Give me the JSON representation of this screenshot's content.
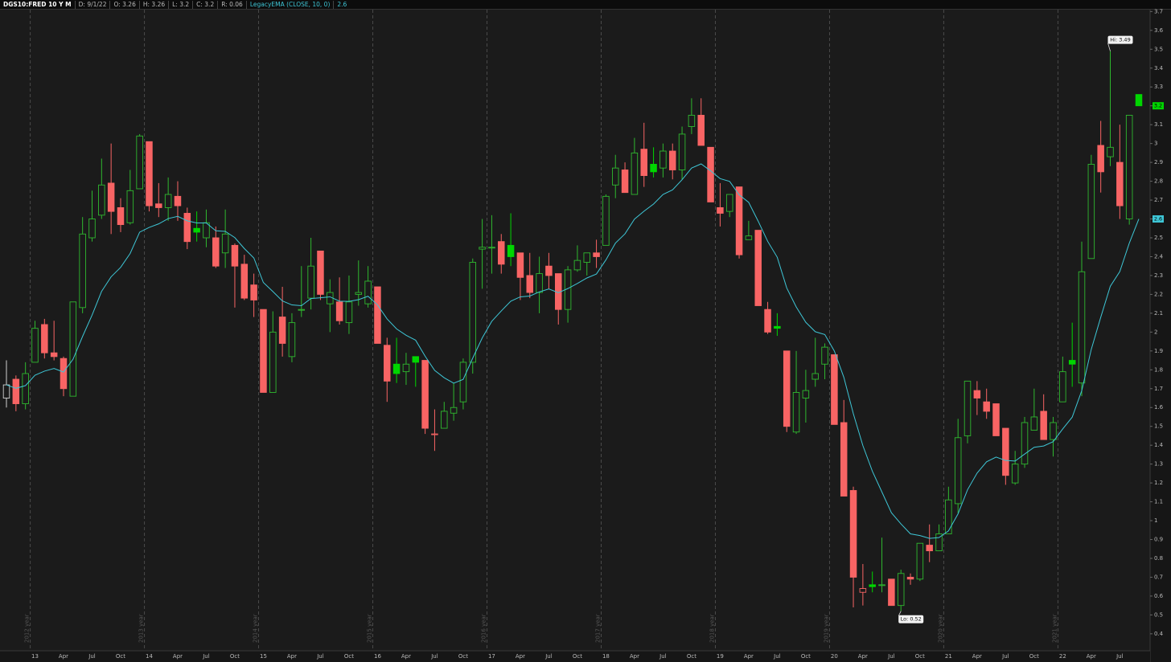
{
  "chart_data": {
    "type": "candlestick",
    "header": {
      "symbol": "DGS10:FRED 10 Y M",
      "fields": [
        "D: 9/1/22",
        "O: 3.26",
        "H: 3.26",
        "L: 3.2",
        "C: 3.2",
        "R: 0.06"
      ]
    },
    "categories": [
      null,
      null,
      null,
      "13",
      null,
      null,
      "Apr",
      null,
      null,
      "Jul",
      null,
      null,
      "Oct",
      null,
      null,
      "14",
      null,
      null,
      "Apr",
      null,
      null,
      "Jul",
      null,
      null,
      "Oct",
      null,
      null,
      "15",
      null,
      null,
      "Apr",
      null,
      null,
      "Jul",
      null,
      null,
      "Oct",
      null,
      null,
      "16",
      null,
      null,
      "Apr",
      null,
      null,
      "Jul",
      null,
      null,
      "Oct",
      null,
      null,
      "17",
      null,
      null,
      "Apr",
      null,
      null,
      "Jul",
      null,
      null,
      "Oct",
      null,
      null,
      "18",
      null,
      null,
      "Apr",
      null,
      null,
      "Jul",
      null,
      null,
      "Oct",
      null,
      null,
      "19",
      null,
      null,
      "Apr",
      null,
      null,
      "Jul",
      null,
      null,
      "Oct",
      null,
      null,
      "20",
      null,
      null,
      "Apr",
      null,
      null,
      "Jul",
      null,
      null,
      "Oct",
      null,
      null,
      "21",
      null,
      null,
      "Apr",
      null,
      null,
      "Jul",
      null,
      null,
      "Oct",
      null,
      null,
      "22",
      null,
      null,
      "Apr",
      null,
      null,
      "Jul",
      null,
      null
    ],
    "open": [
      1.65,
      1.75,
      1.62,
      1.84,
      2.04,
      1.89,
      1.86,
      1.66,
      2.13,
      2.5,
      2.62,
      2.79,
      2.66,
      2.58,
      2.76,
      3.01,
      2.68,
      2.66,
      2.72,
      2.63,
      2.55,
      2.5,
      2.5,
      2.42,
      2.46,
      2.36,
      2.25,
      2.12,
      1.68,
      2.08,
      1.87,
      2.12,
      2.18,
      2.43,
      2.15,
      2.16,
      2.05,
      2.2,
      2.15,
      2.24,
      1.93,
      1.83,
      1.79,
      1.87,
      1.85,
      1.46,
      1.49,
      1.57,
      1.63,
      1.84,
      2.44,
      2.45,
      2.48,
      2.46,
      2.42,
      2.3,
      2.21,
      2.35,
      2.31,
      2.12,
      2.33,
      2.37,
      2.42,
      2.46,
      2.78,
      2.86,
      2.73,
      2.97,
      2.89,
      2.87,
      2.96,
      2.86,
      3.09,
      3.15,
      2.98,
      2.66,
      2.64,
      2.77,
      2.49,
      2.54,
      2.12,
      2.03,
      1.9,
      1.47,
      1.65,
      1.75,
      1.83,
      1.88,
      1.52,
      1.16,
      0.62,
      0.66,
      0.66,
      0.69,
      0.55,
      0.7,
      0.69,
      0.87,
      0.84,
      0.93,
      1.09,
      1.45,
      1.69,
      1.63,
      1.62,
      1.49,
      1.2,
      1.3,
      1.48,
      1.58,
      1.43,
      1.63,
      1.85,
      1.73,
      2.39,
      2.99,
      2.93,
      2.9,
      2.6,
      3.26
    ],
    "high": [
      1.85,
      1.77,
      1.84,
      2.06,
      2.07,
      2.06,
      1.87,
      2.16,
      2.61,
      2.75,
      2.92,
      3.0,
      2.71,
      2.86,
      3.05,
      3.01,
      2.79,
      2.82,
      2.8,
      2.66,
      2.64,
      2.65,
      2.56,
      2.65,
      2.47,
      2.41,
      2.31,
      2.12,
      2.11,
      2.24,
      2.1,
      2.35,
      2.5,
      2.43,
      2.28,
      2.29,
      2.3,
      2.38,
      2.35,
      2.24,
      1.97,
      1.97,
      1.89,
      1.87,
      1.85,
      1.59,
      1.63,
      1.73,
      1.86,
      2.39,
      2.6,
      2.62,
      2.52,
      2.63,
      2.42,
      2.42,
      2.4,
      2.42,
      2.31,
      2.35,
      2.46,
      2.42,
      2.49,
      2.73,
      2.94,
      2.9,
      3.03,
      3.11,
      2.98,
      3.0,
      3.0,
      3.09,
      3.24,
      3.24,
      2.98,
      2.79,
      2.73,
      2.77,
      2.59,
      2.54,
      2.16,
      2.1,
      1.9,
      1.9,
      1.8,
      1.97,
      1.94,
      1.88,
      1.64,
      1.18,
      0.77,
      0.73,
      0.91,
      0.69,
      0.74,
      0.72,
      0.88,
      0.98,
      0.98,
      1.18,
      1.54,
      1.74,
      1.74,
      1.7,
      1.62,
      1.49,
      1.37,
      1.55,
      1.7,
      1.67,
      1.55,
      1.87,
      2.05,
      2.48,
      2.94,
      3.12,
      3.49,
      3.1,
      3.15,
      3.26
    ],
    "low": [
      1.6,
      1.58,
      1.59,
      1.84,
      1.86,
      1.85,
      1.66,
      1.66,
      2.1,
      2.48,
      2.6,
      2.52,
      2.53,
      2.57,
      2.76,
      2.64,
      2.61,
      2.59,
      2.59,
      2.44,
      2.48,
      2.45,
      2.34,
      2.34,
      2.13,
      2.17,
      2.08,
      1.68,
      1.68,
      1.87,
      1.84,
      2.08,
      2.12,
      2.17,
      2.0,
      2.04,
      1.99,
      2.14,
      2.13,
      1.94,
      1.63,
      1.73,
      1.72,
      1.71,
      1.46,
      1.37,
      1.49,
      1.53,
      1.59,
      1.78,
      2.23,
      2.31,
      2.31,
      2.35,
      2.17,
      2.18,
      2.1,
      2.23,
      2.04,
      2.05,
      2.32,
      2.3,
      2.34,
      2.46,
      2.71,
      2.74,
      2.73,
      2.77,
      2.82,
      2.82,
      2.81,
      2.81,
      3.05,
      2.99,
      2.69,
      2.56,
      2.61,
      2.39,
      2.49,
      2.14,
      1.99,
      1.98,
      1.47,
      1.46,
      1.52,
      1.71,
      1.75,
      1.51,
      1.13,
      0.54,
      0.55,
      0.62,
      0.62,
      0.55,
      0.52,
      0.66,
      0.68,
      0.78,
      0.84,
      0.93,
      1.04,
      1.41,
      1.56,
      1.54,
      1.45,
      1.19,
      1.19,
      1.28,
      1.48,
      1.43,
      1.34,
      1.63,
      1.71,
      1.66,
      2.39,
      2.74,
      2.88,
      2.6,
      2.57,
      3.2
    ],
    "close": [
      1.72,
      1.62,
      1.78,
      2.02,
      1.89,
      1.87,
      1.7,
      2.16,
      2.52,
      2.6,
      2.78,
      2.64,
      2.57,
      2.75,
      3.04,
      2.67,
      2.66,
      2.73,
      2.67,
      2.48,
      2.53,
      2.58,
      2.35,
      2.52,
      2.35,
      2.18,
      2.17,
      1.68,
      2.0,
      1.94,
      2.05,
      2.12,
      2.35,
      2.2,
      2.21,
      2.06,
      2.16,
      2.21,
      2.27,
      1.94,
      1.74,
      1.78,
      1.83,
      1.84,
      1.49,
      1.46,
      1.58,
      1.6,
      1.84,
      2.37,
      2.45,
      2.45,
      2.36,
      2.4,
      2.29,
      2.21,
      2.31,
      2.3,
      2.12,
      2.33,
      2.38,
      2.42,
      2.4,
      2.72,
      2.87,
      2.74,
      2.95,
      2.83,
      2.85,
      2.96,
      2.86,
      3.05,
      3.15,
      2.99,
      2.69,
      2.63,
      2.73,
      2.41,
      2.51,
      2.14,
      2.0,
      2.02,
      1.5,
      1.68,
      1.69,
      1.78,
      1.92,
      1.51,
      1.13,
      0.7,
      0.64,
      0.65,
      0.66,
      0.55,
      0.72,
      0.69,
      0.88,
      0.84,
      0.93,
      1.11,
      1.44,
      1.74,
      1.65,
      1.58,
      1.45,
      1.24,
      1.3,
      1.52,
      1.55,
      1.43,
      1.52,
      1.79,
      1.83,
      2.32,
      2.89,
      2.85,
      2.98,
      2.67,
      3.15,
      3.2
    ],
    "ema": {
      "name": "LegacyEMA (CLOSE, 10, 0)",
      "color": "#3ec6d6",
      "values": [
        1.72,
        1.702,
        1.716,
        1.771,
        1.793,
        1.807,
        1.788,
        1.856,
        1.977,
        2.09,
        2.216,
        2.293,
        2.343,
        2.417,
        2.53,
        2.555,
        2.574,
        2.602,
        2.614,
        2.59,
        2.579,
        2.579,
        2.537,
        2.534,
        2.501,
        2.443,
        2.393,
        2.263,
        2.215,
        2.165,
        2.144,
        2.14,
        2.178,
        2.182,
        2.187,
        2.164,
        2.163,
        2.172,
        2.19,
        2.144,
        2.07,
        2.017,
        1.983,
        1.957,
        1.872,
        1.797,
        1.758,
        1.729,
        1.749,
        1.862,
        1.969,
        2.057,
        2.112,
        2.164,
        2.187,
        2.191,
        2.213,
        2.229,
        2.209,
        2.231,
        2.258,
        2.287,
        2.308,
        2.383,
        2.472,
        2.521,
        2.599,
        2.641,
        2.679,
        2.73,
        2.754,
        2.808,
        2.87,
        2.892,
        2.855,
        2.814,
        2.799,
        2.728,
        2.688,
        2.588,
        2.481,
        2.397,
        2.234,
        2.133,
        2.052,
        2.002,
        1.987,
        1.9,
        1.76,
        1.567,
        1.398,
        1.262,
        1.152,
        1.042,
        0.983,
        0.93,
        0.921,
        0.906,
        0.91,
        0.946,
        1.036,
        1.164,
        1.252,
        1.312,
        1.337,
        1.319,
        1.316,
        1.353,
        1.389,
        1.396,
        1.419,
        1.486,
        1.549,
        1.689,
        1.908,
        2.079,
        2.243,
        2.321,
        2.472,
        2.6
      ]
    },
    "up_color": "#2fb82f",
    "up_filled_color": "#00d600",
    "down_color": "#f86464",
    "first_color": "#d0d0d0",
    "separator_color": "#4a4a4a",
    "year_labels": [
      "2012 year",
      "2013 year",
      "2014 year",
      "2015 year",
      "2016 year",
      "2017 year",
      "2018 year",
      "2019 year",
      "2020 year",
      "2021 year"
    ],
    "annotations": [
      {
        "label": "Hi: 3.49",
        "value": 3.49
      },
      {
        "label": "Lo: 0.52",
        "value": 0.52
      }
    ],
    "ylim": [
      0.31,
      3.71
    ],
    "yticks": [
      0.4,
      0.5,
      0.6,
      0.7,
      0.8,
      0.9,
      1,
      1.1,
      1.2,
      1.3,
      1.4,
      1.5,
      1.6,
      1.7,
      1.8,
      1.9,
      2,
      2.1,
      2.2,
      2.3,
      2.4,
      2.5,
      2.6,
      2.7,
      2.8,
      2.9,
      3,
      3.1,
      3.2,
      3.3,
      3.4,
      3.5,
      3.6,
      3.7
    ]
  }
}
